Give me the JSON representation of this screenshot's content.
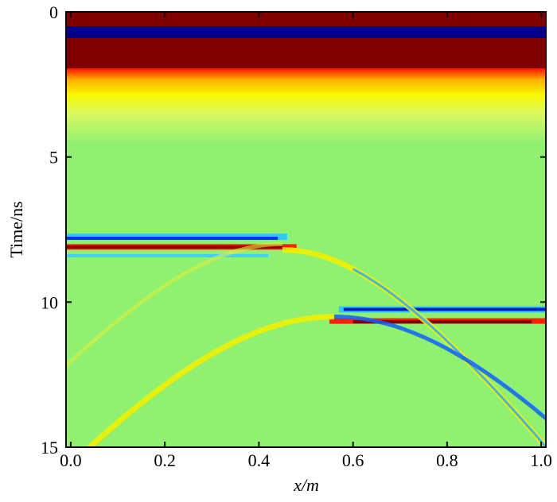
{
  "chart_data": {
    "type": "heatmap",
    "xlabel": "x/m",
    "ylabel": "Time/ns",
    "xlim": [
      -0.01,
      1.01
    ],
    "ylim": [
      0,
      15
    ],
    "xticks": [
      {
        "value": 0,
        "label": "0.0"
      },
      0.2,
      0.4,
      0.6,
      0.8,
      {
        "value": 1,
        "label": "1.0"
      }
    ],
    "yticks": [
      0,
      5,
      10,
      15
    ]
  }
}
